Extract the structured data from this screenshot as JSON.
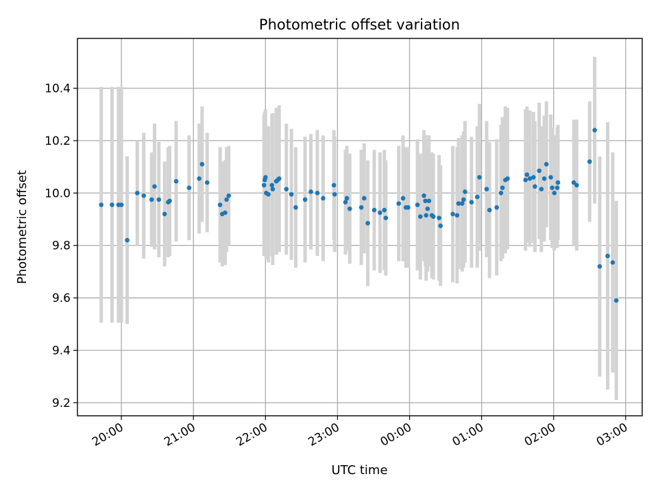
{
  "chart_data": {
    "type": "scatter",
    "title": "Photometric offset variation",
    "xlabel": "UTC time",
    "ylabel": "Photometric offset",
    "x_ticks": [
      "20:00",
      "21:00",
      "22:00",
      "23:00",
      "00:00",
      "01:00",
      "02:00",
      "03:00"
    ],
    "x_tick_hours": [
      20,
      21,
      22,
      23,
      24,
      25,
      26,
      27
    ],
    "xlim_hours": [
      19.39,
      27.23
    ],
    "y_ticks": [
      "9.2",
      "9.4",
      "9.6",
      "9.8",
      "10.0",
      "10.2",
      "10.4"
    ],
    "ylim": [
      9.15,
      10.59
    ],
    "grid": true,
    "colors": {
      "point": "#1f77b4",
      "errorbar": "#d3d3d3",
      "grid": "#b0b0b0"
    },
    "series": [
      {
        "x_hours": [
          19.72,
          19.87,
          19.96,
          20.0,
          20.08,
          20.22,
          20.31,
          20.42,
          20.46,
          20.52,
          20.6,
          20.65,
          20.67,
          20.76,
          20.94,
          21.08,
          21.12,
          21.19,
          21.37,
          21.4,
          21.44,
          21.46,
          21.49,
          21.98,
          21.99,
          22.0,
          22.01,
          22.04,
          22.09,
          22.1,
          22.15,
          22.17,
          22.19,
          22.29,
          22.36,
          22.42,
          22.55,
          22.63,
          22.72,
          22.8,
          22.95,
          22.96,
          23.11,
          23.13,
          23.17,
          23.33,
          23.37,
          23.42,
          23.51,
          23.59,
          23.65,
          23.67,
          23.85,
          23.91,
          23.95,
          23.98,
          24.11,
          24.15,
          24.2,
          24.22,
          24.23,
          24.25,
          24.27,
          24.31,
          24.33,
          24.41,
          24.43,
          24.6,
          24.66,
          24.68,
          24.73,
          24.75,
          24.77,
          24.86,
          24.94,
          24.97,
          25.07,
          25.11,
          25.21,
          25.27,
          25.29,
          25.33,
          25.36,
          25.61,
          25.63,
          25.67,
          25.72,
          25.74,
          25.8,
          25.83,
          25.87,
          25.9,
          25.96,
          25.98,
          26.01,
          26.05,
          26.06,
          26.28,
          26.32,
          26.5,
          26.57,
          26.64,
          26.75,
          26.82,
          26.87
        ],
        "y": [
          9.955,
          9.955,
          9.955,
          9.955,
          9.82,
          10.0,
          9.99,
          9.975,
          10.025,
          9.975,
          9.92,
          9.965,
          9.97,
          10.045,
          10.02,
          10.055,
          10.11,
          10.04,
          9.955,
          9.92,
          9.925,
          9.975,
          9.99,
          10.03,
          10.05,
          10.06,
          10.0,
          9.995,
          10.03,
          10.015,
          10.045,
          10.05,
          10.055,
          10.015,
          9.995,
          9.945,
          9.975,
          10.005,
          10.0,
          9.98,
          10.03,
          9.995,
          9.965,
          9.98,
          9.94,
          9.945,
          9.98,
          9.885,
          9.935,
          9.925,
          9.935,
          9.905,
          9.96,
          9.98,
          9.945,
          9.945,
          9.955,
          9.91,
          9.99,
          9.97,
          9.915,
          9.94,
          9.97,
          9.915,
          9.91,
          9.905,
          9.875,
          9.92,
          9.915,
          9.96,
          9.96,
          9.975,
          10.005,
          9.965,
          9.985,
          10.06,
          10.015,
          9.935,
          9.945,
          10.0,
          10.02,
          10.05,
          10.055,
          10.05,
          10.07,
          10.055,
          10.06,
          10.025,
          10.085,
          10.015,
          10.055,
          10.11,
          10.06,
          10.02,
          10.0,
          10.02,
          10.04,
          10.04,
          10.03,
          10.12,
          10.24,
          9.72,
          9.76,
          9.735,
          9.59
        ],
        "yerr": [
          0.45,
          0.45,
          0.45,
          0.45,
          0.32,
          0.2,
          0.24,
          0.18,
          0.24,
          0.22,
          0.2,
          0.21,
          0.21,
          0.23,
          0.2,
          0.21,
          0.22,
          0.19,
          0.22,
          0.2,
          0.2,
          0.2,
          0.19,
          0.27,
          0.26,
          0.26,
          0.25,
          0.26,
          0.27,
          0.29,
          0.28,
          0.27,
          0.28,
          0.25,
          0.25,
          0.23,
          0.24,
          0.22,
          0.24,
          0.24,
          0.21,
          0.22,
          0.2,
          0.2,
          0.21,
          0.22,
          0.21,
          0.24,
          0.23,
          0.23,
          0.23,
          0.22,
          0.22,
          0.24,
          0.23,
          0.23,
          0.25,
          0.24,
          0.25,
          0.25,
          0.25,
          0.24,
          0.25,
          0.24,
          0.24,
          0.24,
          0.23,
          0.26,
          0.26,
          0.25,
          0.26,
          0.26,
          0.27,
          0.25,
          0.27,
          0.28,
          0.26,
          0.26,
          0.26,
          0.26,
          0.27,
          0.28,
          0.27,
          0.27,
          0.26,
          0.26,
          0.25,
          0.25,
          0.26,
          0.24,
          0.24,
          0.24,
          0.24,
          0.23,
          0.22,
          0.23,
          0.22,
          0.24,
          0.25,
          0.23,
          0.28,
          0.42,
          0.51,
          0.42,
          0.38
        ]
      }
    ]
  }
}
